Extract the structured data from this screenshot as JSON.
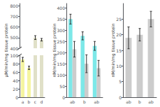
{
  "chart_data": [
    {
      "type": "bar",
      "categories": [
        "a",
        "b",
        "c",
        "d"
      ],
      "values": [
        90,
        70,
        500,
        480
      ],
      "errors": [
        5,
        4,
        18,
        12
      ],
      "colors": [
        "#f5f5a0",
        "#f5f5a0",
        "#e0e0c8",
        "#e0e0c8"
      ],
      "ylabel": "μM/min/mg tissue protein",
      "ylim": [
        0,
        820
      ],
      "yticks": [
        0,
        20,
        40,
        60,
        80,
        100,
        400,
        500,
        600,
        700,
        800
      ],
      "grid": false
    },
    {
      "type": "bar",
      "categories": [
        "ab",
        "b",
        "ab"
      ],
      "series": [
        {
          "color": "#7de8e8",
          "values": [
            350,
            275,
            230
          ],
          "errors": [
            22,
            18,
            20
          ]
        },
        {
          "color": "#cccccc",
          "values": [
            215,
            150,
            130
          ],
          "errors": [
            35,
            40,
            35
          ]
        }
      ],
      "ylabel": "nM/min/mg tissue protein",
      "ylim": [
        0,
        420
      ],
      "yticks": [
        0,
        50,
        100,
        150,
        200,
        250,
        300,
        350,
        400
      ],
      "grid": false
    },
    {
      "type": "bar",
      "categories": [
        "ab",
        "b",
        "ab"
      ],
      "values": [
        19,
        20,
        25
      ],
      "errors": [
        3.5,
        2.0,
        2.5
      ],
      "color": "#cccccc",
      "ylabel": "nM/min/mg tissue protein",
      "ylim": [
        0,
        30
      ],
      "yticks": [
        0,
        5,
        10,
        15,
        20,
        25
      ],
      "grid": false
    }
  ]
}
